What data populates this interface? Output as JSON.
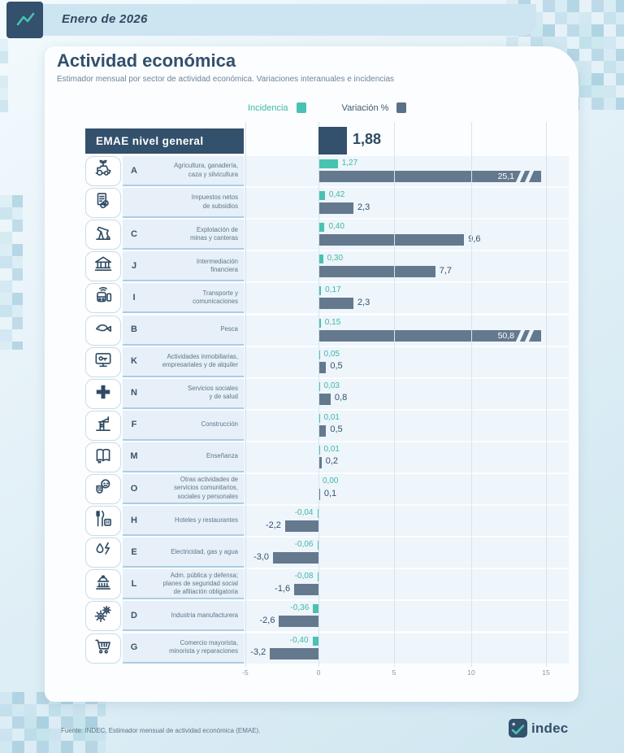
{
  "header": {
    "period": "Enero de 2026"
  },
  "title": "Actividad económica",
  "subtitle": "Estimador mensual por sector de actividad económica. Variaciones interanuales e incidencias",
  "legend": {
    "incidencia": "Incidencia",
    "variacion": "Variación %"
  },
  "colors": {
    "teal": "#49c2b1",
    "slate": "#64798e",
    "navy": "#33506c",
    "banner_blue": "#cde5f1"
  },
  "emae": {
    "label": "EMAE nivel general",
    "value": 1.88,
    "display": "1,88"
  },
  "axis": {
    "ticks": [
      "-5",
      "0",
      "5",
      "10",
      "15"
    ]
  },
  "rows": [
    {
      "letter": "A",
      "icon": "agriculture-icon",
      "name": "Agricultura, ganadería,\ncaza y silvicultura",
      "incidencia": 1.27,
      "incidencia_label": "1,27",
      "variacion": 25.1,
      "variacion_label": "25,1",
      "truncated": true
    },
    {
      "letter": "",
      "icon": "taxes-icon",
      "name": "Impuestos netos\nde subsidios",
      "incidencia": 0.42,
      "incidencia_label": "0,42",
      "variacion": 2.3,
      "variacion_label": "2,3",
      "truncated": false
    },
    {
      "letter": "C",
      "icon": "mining-icon",
      "name": "Explotación de\nminas y canteras",
      "incidencia": 0.4,
      "incidencia_label": "0,40",
      "variacion": 9.6,
      "variacion_label": "9,6",
      "truncated": false
    },
    {
      "letter": "J",
      "icon": "bank-icon",
      "name": "Intermediación\nfinanciera",
      "incidencia": 0.3,
      "incidencia_label": "0,30",
      "variacion": 7.7,
      "variacion_label": "7,7",
      "truncated": false
    },
    {
      "letter": "I",
      "icon": "transport-icon",
      "name": "Transporte y\ncomunicaciones",
      "incidencia": 0.17,
      "incidencia_label": "0,17",
      "variacion": 2.3,
      "variacion_label": "2,3",
      "truncated": false
    },
    {
      "letter": "B",
      "icon": "fish-icon",
      "name": "Pesca",
      "incidencia": 0.15,
      "incidencia_label": "0,15",
      "variacion": 50.8,
      "variacion_label": "50,8",
      "truncated": true
    },
    {
      "letter": "K",
      "icon": "real-estate-icon",
      "name": "Actividades inmobiliarias,\nempresariales y de alquiler",
      "incidencia": 0.05,
      "incidencia_label": "0,05",
      "variacion": 0.5,
      "variacion_label": "0,5",
      "truncated": false
    },
    {
      "letter": "N",
      "icon": "health-cross-icon",
      "name": "Servicios sociales\ny de salud",
      "incidencia": 0.03,
      "incidencia_label": "0,03",
      "variacion": 0.8,
      "variacion_label": "0,8",
      "truncated": false
    },
    {
      "letter": "F",
      "icon": "construction-crane-icon",
      "name": "Construcción",
      "incidencia": 0.01,
      "incidencia_label": "0,01",
      "variacion": 0.5,
      "variacion_label": "0,5",
      "truncated": false
    },
    {
      "letter": "M",
      "icon": "book-icon",
      "name": "Enseñanza",
      "incidencia": 0.01,
      "incidencia_label": "0,01",
      "variacion": 0.2,
      "variacion_label": "0,2",
      "truncated": false
    },
    {
      "letter": "O",
      "icon": "community-services-icon",
      "name": "Otras actividades de\nservicios comunitarios,\nsociales y personales",
      "incidencia": 0.0,
      "incidencia_label": "0,00",
      "variacion": 0.1,
      "variacion_label": "0,1",
      "truncated": false
    },
    {
      "letter": "H",
      "icon": "restaurant-icon",
      "name": "Hoteles y restaurantes",
      "incidencia": -0.04,
      "incidencia_label": "-0,04",
      "variacion": -2.2,
      "variacion_label": "-2,2",
      "truncated": false
    },
    {
      "letter": "E",
      "icon": "energy-icon",
      "name": "Electricidad, gas y agua",
      "incidencia": -0.06,
      "incidencia_label": "-0,06",
      "variacion": -3.0,
      "variacion_label": "-3,0",
      "truncated": false
    },
    {
      "letter": "L",
      "icon": "government-icon",
      "name": "Adm. pública y defensa;\nplanes de seguridad social\nde afiliación obligatoria",
      "incidencia": -0.08,
      "incidencia_label": "-0,08",
      "variacion": -1.6,
      "variacion_label": "-1,6",
      "truncated": false
    },
    {
      "letter": "D",
      "icon": "gears-icon",
      "name": "Industria manufacturera",
      "incidencia": -0.36,
      "incidencia_label": "-0,36",
      "variacion": -2.6,
      "variacion_label": "-2,6",
      "truncated": false
    },
    {
      "letter": "G",
      "icon": "cart-icon",
      "name": "Comercio mayorista,\nminorista y reparaciones",
      "incidencia": -0.4,
      "incidencia_label": "-0,40",
      "variacion": -3.2,
      "variacion_label": "-3,2",
      "truncated": false
    }
  ],
  "chart_data": {
    "type": "bar",
    "orientation": "horizontal",
    "title": "Actividad económica",
    "subtitle": "Estimador mensual por sector de actividad económica. Variaciones interanuales e incidencias",
    "period": "Enero de 2026",
    "overall": {
      "label": "EMAE nivel general",
      "variacion_pct": 1.88
    },
    "categories": [
      "Agricultura, ganadería, caza y silvicultura",
      "Impuestos netos de subsidios",
      "Explotación de minas y canteras",
      "Intermediación financiera",
      "Transporte y comunicaciones",
      "Pesca",
      "Actividades inmobiliarias, empresariales y de alquiler",
      "Servicios sociales y de salud",
      "Construcción",
      "Enseñanza",
      "Otras actividades de servicios comunitarios, sociales y personales",
      "Hoteles y restaurantes",
      "Electricidad, gas y agua",
      "Adm. pública y defensa; planes de seguridad social de afiliación obligatoria",
      "Industria manufacturera",
      "Comercio mayorista, minorista y reparaciones"
    ],
    "series": [
      {
        "name": "Incidencia",
        "color": "#49c2b1",
        "values": [
          1.27,
          0.42,
          0.4,
          0.3,
          0.17,
          0.15,
          0.05,
          0.03,
          0.01,
          0.01,
          0.0,
          -0.04,
          -0.06,
          -0.08,
          -0.36,
          -0.4
        ]
      },
      {
        "name": "Variación %",
        "color": "#64798e",
        "values": [
          25.1,
          2.3,
          9.6,
          7.7,
          2.3,
          50.8,
          0.5,
          0.8,
          0.5,
          0.2,
          0.1,
          -2.2,
          -3.0,
          -1.6,
          -2.6,
          -3.2
        ]
      }
    ],
    "x_axis": {
      "ticks": [
        -5,
        0,
        5,
        10,
        15
      ],
      "range": [
        -5,
        15
      ]
    },
    "truncated_bar_indices": [
      0,
      5
    ],
    "legend_position": "top",
    "grid": "vertical"
  },
  "footer": {
    "source": "Fuente: INDEC, Estimador mensual de actividad económica (EMAE).",
    "logo_text": "indec"
  }
}
